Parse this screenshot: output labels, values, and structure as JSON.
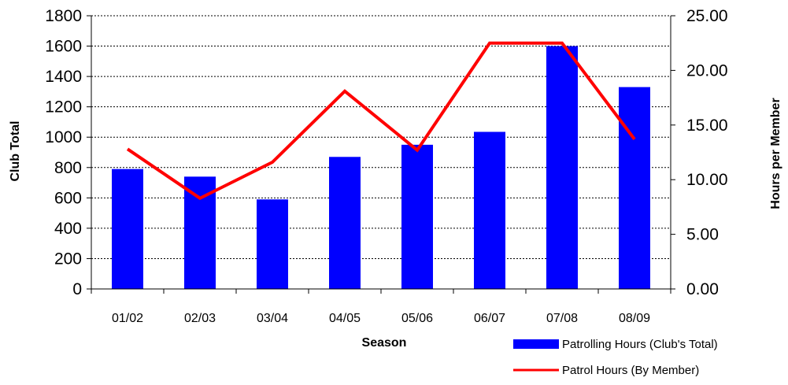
{
  "chart_data": {
    "type": "bar",
    "categories": [
      "01/02",
      "02/03",
      "03/04",
      "04/05",
      "05/06",
      "06/07",
      "07/08",
      "08/09"
    ],
    "series": [
      {
        "name": "Patrolling Hours (Club's Total)",
        "type": "bar",
        "axis": "left",
        "color": "#0000ff",
        "values": [
          790,
          740,
          590,
          870,
          950,
          1035,
          1600,
          1330
        ]
      },
      {
        "name": "Patrol Hours  (By Member)",
        "type": "line",
        "axis": "right",
        "color": "#ff0000",
        "values": [
          12.8,
          8.3,
          11.6,
          18.1,
          12.7,
          22.5,
          22.5,
          13.7
        ]
      }
    ],
    "xlabel": "Season",
    "ylabel": "Club Total",
    "y2label": "Hours per Member",
    "ylim": [
      0,
      1800
    ],
    "y2lim": [
      0,
      25
    ],
    "yticks": [
      "0",
      "200",
      "400",
      "600",
      "800",
      "1000",
      "1200",
      "1400",
      "1600",
      "1800"
    ],
    "y2ticks": [
      "0.00",
      "5.00",
      "10.00",
      "15.00",
      "20.00",
      "25.00"
    ],
    "grid": "horizontal dashed",
    "legend": "bottom-right"
  }
}
